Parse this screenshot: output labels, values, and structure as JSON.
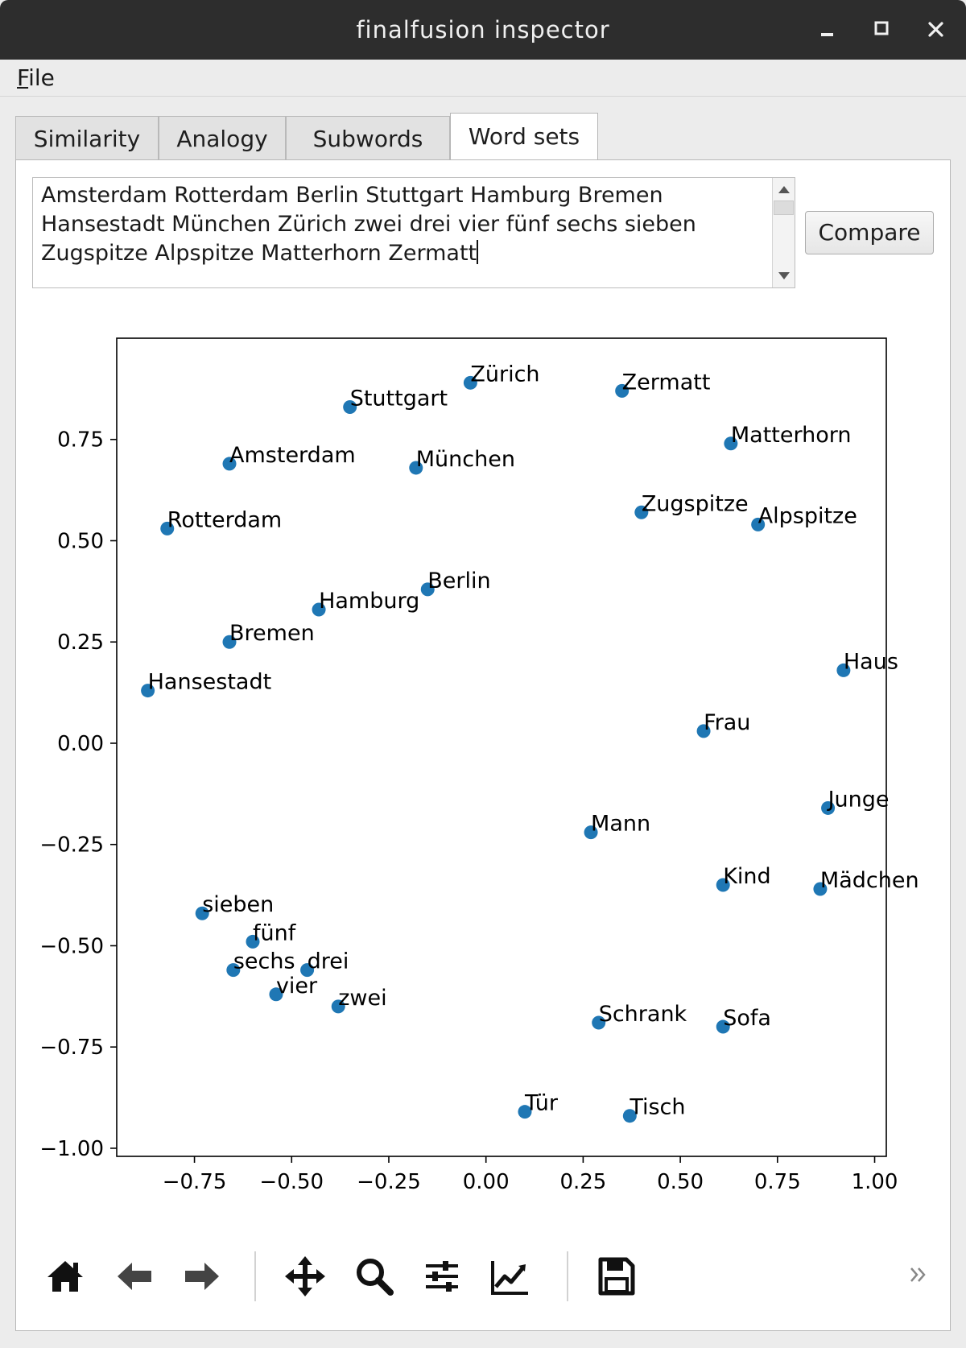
{
  "window": {
    "title": "finalfusion inspector",
    "controls": [
      "minimize",
      "maximize",
      "close"
    ]
  },
  "menubar": {
    "file_mnemonic": "F",
    "file_rest": "ile"
  },
  "tabs": [
    {
      "label": "Similarity",
      "active": false
    },
    {
      "label": "Analogy",
      "active": false
    },
    {
      "label": "Subwords",
      "active": false
    },
    {
      "label": "Word sets",
      "active": true
    }
  ],
  "word_input": {
    "value": "Amsterdam Rotterdam Berlin Stuttgart Hamburg Bremen Hansestadt München Zürich zwei drei vier fünf sechs sieben Zugspitze Alpspitze Matterhorn Zermatt"
  },
  "compare_button": {
    "label": "Compare"
  },
  "chart_data": {
    "type": "scatter",
    "title": "",
    "xlabel": "",
    "ylabel": "",
    "xlim": [
      -0.95,
      1.03
    ],
    "ylim": [
      -1.02,
      1.0
    ],
    "xticks": [
      -0.75,
      -0.5,
      -0.25,
      0.0,
      0.25,
      0.5,
      0.75,
      1.0
    ],
    "xtick_labels": [
      "−0.75",
      "−0.50",
      "−0.25",
      "0.00",
      "0.25",
      "0.50",
      "0.75",
      "1.00"
    ],
    "yticks": [
      0.75,
      0.5,
      0.25,
      0.0,
      -0.25,
      -0.5,
      -0.75,
      -1.0
    ],
    "ytick_labels": [
      "0.75",
      "0.50",
      "0.25",
      "0.00",
      "−0.25",
      "−0.50",
      "−0.75",
      "−1.00"
    ],
    "grid": false,
    "marker_color": "#1f77b4",
    "points": [
      {
        "label": "Zürich",
        "x": -0.04,
        "y": 0.89
      },
      {
        "label": "Zermatt",
        "x": 0.35,
        "y": 0.87
      },
      {
        "label": "Stuttgart",
        "x": -0.35,
        "y": 0.83
      },
      {
        "label": "Matterhorn",
        "x": 0.63,
        "y": 0.74
      },
      {
        "label": "Amsterdam",
        "x": -0.66,
        "y": 0.69
      },
      {
        "label": "München",
        "x": -0.18,
        "y": 0.68
      },
      {
        "label": "Zugspitze",
        "x": 0.4,
        "y": 0.57
      },
      {
        "label": "Alpspitze",
        "x": 0.7,
        "y": 0.54
      },
      {
        "label": "Rotterdam",
        "x": -0.82,
        "y": 0.53
      },
      {
        "label": "Berlin",
        "x": -0.15,
        "y": 0.38
      },
      {
        "label": "Hamburg",
        "x": -0.43,
        "y": 0.33
      },
      {
        "label": "Bremen",
        "x": -0.66,
        "y": 0.25
      },
      {
        "label": "Haus",
        "x": 0.92,
        "y": 0.18
      },
      {
        "label": "Hansestadt",
        "x": -0.87,
        "y": 0.13
      },
      {
        "label": "Frau",
        "x": 0.56,
        "y": 0.03
      },
      {
        "label": "Junge",
        "x": 0.88,
        "y": -0.16
      },
      {
        "label": "Mann",
        "x": 0.27,
        "y": -0.22
      },
      {
        "label": "Kind",
        "x": 0.61,
        "y": -0.35
      },
      {
        "label": "Mädchen",
        "x": 0.86,
        "y": -0.36
      },
      {
        "label": "sieben",
        "x": -0.73,
        "y": -0.42
      },
      {
        "label": "fünf",
        "x": -0.6,
        "y": -0.49
      },
      {
        "label": "sechs",
        "x": -0.65,
        "y": -0.56
      },
      {
        "label": "drei",
        "x": -0.46,
        "y": -0.56
      },
      {
        "label": "vier",
        "x": -0.54,
        "y": -0.62
      },
      {
        "label": "zwei",
        "x": -0.38,
        "y": -0.65
      },
      {
        "label": "Schrank",
        "x": 0.29,
        "y": -0.69
      },
      {
        "label": "Sofa",
        "x": 0.61,
        "y": -0.7
      },
      {
        "label": "Tür",
        "x": 0.1,
        "y": -0.91
      },
      {
        "label": "Tisch",
        "x": 0.37,
        "y": -0.92
      }
    ]
  },
  "toolbar": {
    "buttons": [
      {
        "name": "home",
        "icon": "home-icon"
      },
      {
        "name": "back",
        "icon": "arrow-left-icon"
      },
      {
        "name": "forward",
        "icon": "arrow-right-icon"
      },
      {
        "name": "pan",
        "icon": "move-icon"
      },
      {
        "name": "zoom",
        "icon": "magnifier-icon"
      },
      {
        "name": "configure-subplots",
        "icon": "sliders-icon"
      },
      {
        "name": "edit-axis",
        "icon": "line-chart-icon"
      },
      {
        "name": "save",
        "icon": "floppy-disk-icon"
      }
    ],
    "overflow_icon": "chevron-double-right-icon"
  }
}
